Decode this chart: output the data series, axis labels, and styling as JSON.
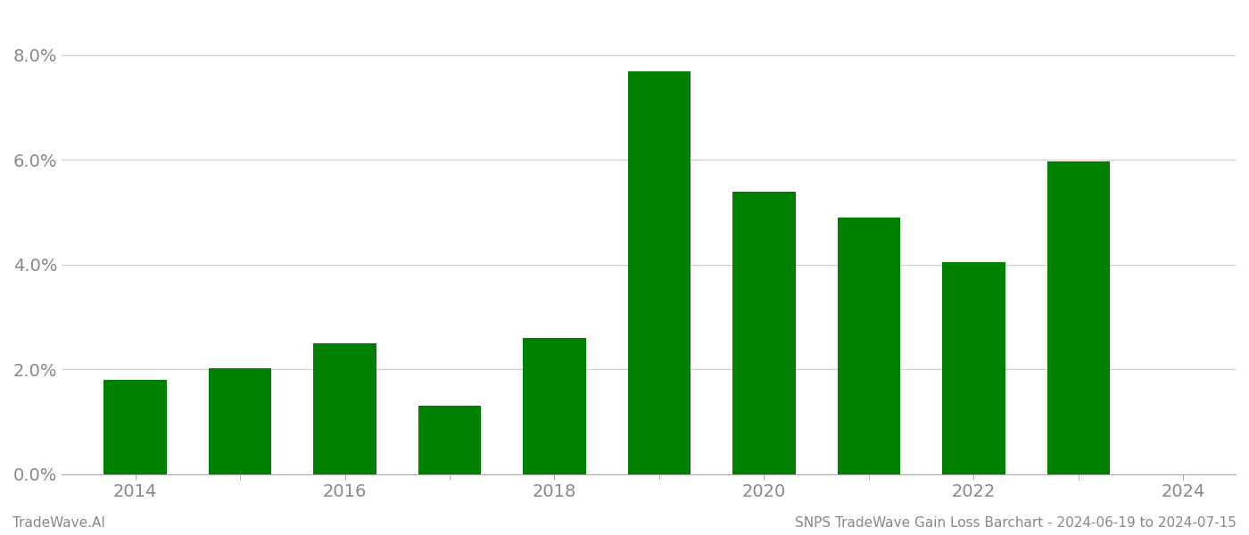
{
  "years": [
    2014,
    2015,
    2016,
    2017,
    2018,
    2019,
    2020,
    2021,
    2022,
    2023
  ],
  "values": [
    0.018,
    0.0202,
    0.025,
    0.013,
    0.026,
    0.077,
    0.054,
    0.049,
    0.0405,
    0.0597
  ],
  "bar_color": "#008000",
  "background_color": "#ffffff",
  "grid_color": "#cccccc",
  "axis_label_color": "#aaaaaa",
  "tick_label_color": "#888888",
  "ylim": [
    0.0,
    0.088
  ],
  "yticks": [
    0.0,
    0.02,
    0.04,
    0.06,
    0.08
  ],
  "ytick_labels": [
    "0.0%",
    "2.0%",
    "4.0%",
    "6.0%",
    "8.0%"
  ],
  "xtick_positions": [
    2014,
    2016,
    2018,
    2020,
    2022,
    2024
  ],
  "xtick_labels": [
    "2014",
    "2016",
    "2018",
    "2020",
    "2022",
    "2024"
  ],
  "footer_left": "TradeWave.AI",
  "footer_right": "SNPS TradeWave Gain Loss Barchart - 2024-06-19 to 2024-07-15",
  "footer_fontsize": 11,
  "tick_fontsize": 14,
  "bar_width": 0.6
}
